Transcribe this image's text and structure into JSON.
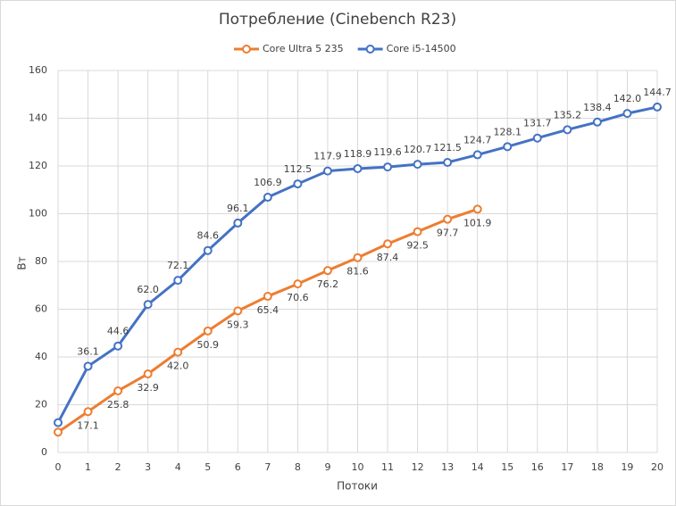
{
  "chart_data": {
    "type": "line",
    "title": "Потребление (Cinebench R23)",
    "x_label": "Потоки",
    "y_label": "Вт",
    "x": [
      0,
      1,
      2,
      3,
      4,
      5,
      6,
      7,
      8,
      9,
      10,
      11,
      12,
      13,
      14,
      15,
      16,
      17,
      18,
      19,
      20
    ],
    "xlim": [
      0,
      20
    ],
    "ylim": [
      0,
      160
    ],
    "yticks": [
      0,
      20,
      40,
      60,
      80,
      100,
      120,
      140,
      160
    ],
    "grid": true,
    "legend": "top",
    "series": [
      {
        "name": "Core Ultra 5 235",
        "color": "#ed7d31",
        "label_position": "below",
        "values": [
          8.5,
          17.1,
          25.8,
          32.9,
          42.0,
          50.9,
          59.3,
          65.4,
          70.6,
          76.2,
          81.6,
          87.4,
          92.5,
          97.7,
          101.9,
          null,
          null,
          null,
          null,
          null,
          null
        ],
        "value_labels": [
          null,
          "17.1",
          "25.8",
          "32.9",
          "42.0",
          "50.9",
          "59.3",
          "65.4",
          "70.6",
          "76.2",
          "81.6",
          "87.4",
          "92.5",
          "97.7",
          "101.9",
          null,
          null,
          null,
          null,
          null,
          null
        ]
      },
      {
        "name": "Core i5-14500",
        "color": "#4472c4",
        "label_position": "above",
        "values": [
          12.5,
          36.1,
          44.6,
          62.0,
          72.1,
          84.6,
          96.1,
          106.9,
          112.5,
          117.9,
          118.9,
          119.6,
          120.7,
          121.5,
          124.7,
          128.1,
          131.7,
          135.2,
          138.4,
          142.0,
          144.7
        ],
        "value_labels": [
          null,
          "36.1",
          "44.6",
          "62.0",
          "72.1",
          "84.6",
          "96.1",
          "106.9",
          "112.5",
          "117.9",
          "118.9",
          "119.6",
          "120.7",
          "121.5",
          "124.7",
          "128.1",
          "131.7",
          "135.2",
          "138.4",
          "142.0",
          "144.7"
        ]
      }
    ]
  }
}
